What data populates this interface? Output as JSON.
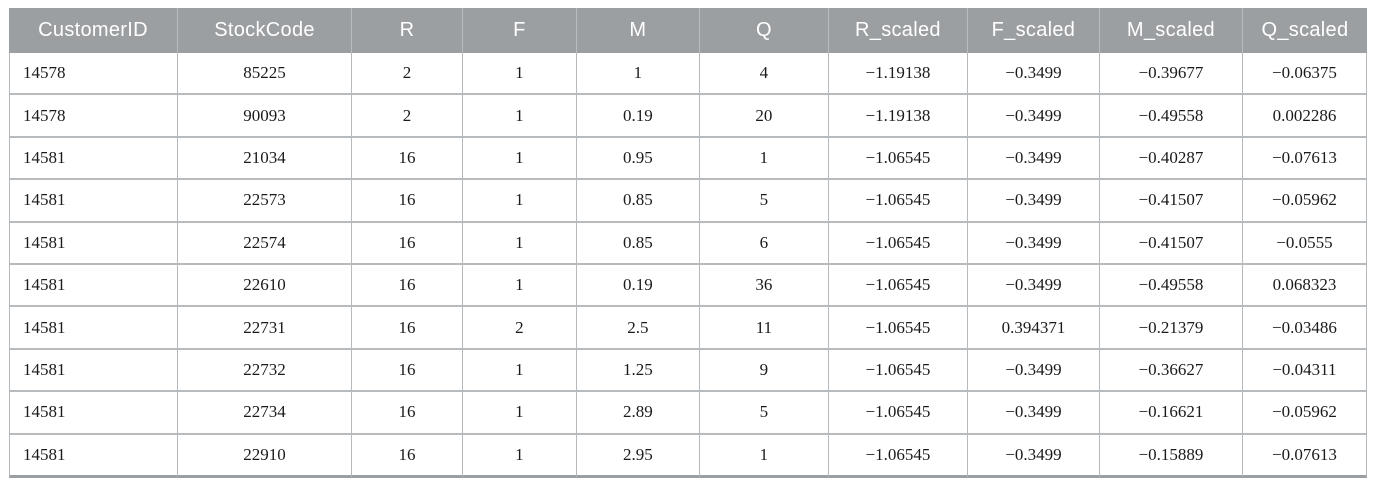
{
  "chart_data": {
    "type": "table",
    "title": "",
    "columns": [
      "CustomerID",
      "StockCode",
      "R",
      "F",
      "M",
      "Q",
      "R_scaled",
      "F_scaled",
      "M_scaled",
      "Q_scaled"
    ],
    "rows": [
      [
        "14578",
        "85225",
        "2",
        "1",
        "1",
        "4",
        "−1.19138",
        "−0.3499",
        "−0.39677",
        "−0.06375"
      ],
      [
        "14578",
        "90093",
        "2",
        "1",
        "0.19",
        "20",
        "−1.19138",
        "−0.3499",
        "−0.49558",
        "0.002286"
      ],
      [
        "14581",
        "21034",
        "16",
        "1",
        "0.95",
        "1",
        "−1.06545",
        "−0.3499",
        "−0.40287",
        "−0.07613"
      ],
      [
        "14581",
        "22573",
        "16",
        "1",
        "0.85",
        "5",
        "−1.06545",
        "−0.3499",
        "−0.41507",
        "−0.05962"
      ],
      [
        "14581",
        "22574",
        "16",
        "1",
        "0.85",
        "6",
        "−1.06545",
        "−0.3499",
        "−0.41507",
        "−0.0555"
      ],
      [
        "14581",
        "22610",
        "16",
        "1",
        "0.19",
        "36",
        "−1.06545",
        "−0.3499",
        "−0.49558",
        "0.068323"
      ],
      [
        "14581",
        "22731",
        "16",
        "2",
        "2.5",
        "11",
        "−1.06545",
        "0.394371",
        "−0.21379",
        "−0.03486"
      ],
      [
        "14581",
        "22732",
        "16",
        "1",
        "1.25",
        "9",
        "−1.06545",
        "−0.3499",
        "−0.36627",
        "−0.04311"
      ],
      [
        "14581",
        "22734",
        "16",
        "1",
        "2.89",
        "5",
        "−1.06545",
        "−0.3499",
        "−0.16621",
        "−0.05962"
      ],
      [
        "14581",
        "22910",
        "16",
        "1",
        "2.95",
        "1",
        "−1.06545",
        "−0.3499",
        "−0.15889",
        "−0.07613"
      ]
    ],
    "layout": {
      "header_align": "center",
      "first_column_align": "left",
      "other_columns_align": "center",
      "grid": true
    },
    "colors": {
      "header_bg": "#9b9fa2",
      "header_text": "#ffffff",
      "grid_line": "#b7bbbd",
      "bottom_rule": "#9b9fa2",
      "body_text": "#1a1a1a",
      "row_bg": "#ffffff"
    }
  }
}
